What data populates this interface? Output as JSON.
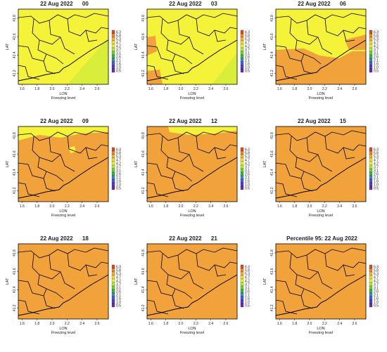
{
  "colors": {
    "yellow": "#f5f23a",
    "lime": "#d8ee3a",
    "orange": "#f1a23a",
    "boundary": "#000000"
  },
  "chart_data": [
    {
      "type": "heatmap",
      "title": "22 Aug 2022      00",
      "xlabel": "LON",
      "ylabel": "LAT",
      "caption": "Freezing level",
      "x_ticks": [
        "1.6",
        "1.8",
        "2.0",
        "2.2",
        "2.4",
        "2.6"
      ],
      "y_ticks": [
        "41.2",
        "41.4",
        "41.6",
        "41.8"
      ],
      "colorbar_ticks": [
        "6.3",
        "5.8",
        "5.3",
        "4.7",
        "4.2",
        "3.7",
        "3.1",
        "2.6",
        "2.1",
        "1.6",
        "1.0",
        "0.5"
      ],
      "dominant": "yellow"
    },
    {
      "type": "heatmap",
      "title": "22 Aug 2022      03",
      "xlabel": "LON",
      "ylabel": "LAT",
      "caption": "Freezing level",
      "x_ticks": [
        "1.6",
        "1.8",
        "2.0",
        "2.2",
        "2.4",
        "2.6"
      ],
      "y_ticks": [
        "41.2",
        "41.4",
        "41.6",
        "41.8"
      ],
      "colorbar_ticks": [
        "6.3",
        "5.8",
        "5.3",
        "4.7",
        "4.2",
        "3.7",
        "3.1",
        "2.6",
        "2.1",
        "1.6",
        "1.0",
        "0.5"
      ],
      "dominant": "yellow"
    },
    {
      "type": "heatmap",
      "title": "22 Aug 2022      06",
      "xlabel": "LON",
      "ylabel": "LAT",
      "caption": "Freezing level",
      "x_ticks": [
        "1.6",
        "1.8",
        "2.0",
        "2.2",
        "2.4",
        "2.6"
      ],
      "y_ticks": [
        "41.2",
        "41.4",
        "41.6",
        "41.8"
      ],
      "colorbar_ticks": [
        "6.3",
        "5.8",
        "5.3",
        "4.7",
        "4.2",
        "3.7",
        "3.1",
        "2.6",
        "2.1",
        "1.6",
        "1.0",
        "0.5"
      ],
      "dominant": "mixed"
    },
    {
      "type": "heatmap",
      "title": "22 Aug 2022      09",
      "xlabel": "LON",
      "ylabel": "LAT",
      "caption": "Freezing level",
      "x_ticks": [
        "1.6",
        "1.8",
        "2.0",
        "2.2",
        "2.4",
        "2.6"
      ],
      "y_ticks": [
        "41.2",
        "41.4",
        "41.6",
        "41.8"
      ],
      "colorbar_ticks": [
        "6.3",
        "5.8",
        "5.3",
        "4.7",
        "4.2",
        "3.7",
        "3.1",
        "2.6",
        "2.1",
        "1.6",
        "1.0",
        "0.5"
      ],
      "dominant": "orange"
    },
    {
      "type": "heatmap",
      "title": "22 Aug 2022      12",
      "xlabel": "LON",
      "ylabel": "LAT",
      "caption": "Freezing level",
      "x_ticks": [
        "1.6",
        "1.8",
        "2.0",
        "2.2",
        "2.4",
        "2.6"
      ],
      "y_ticks": [
        "41.2",
        "41.4",
        "41.6",
        "41.8"
      ],
      "colorbar_ticks": [
        "6.3",
        "5.8",
        "5.3",
        "4.7",
        "4.2",
        "3.7",
        "3.1",
        "2.6",
        "2.1",
        "1.6",
        "1.0",
        "0.5"
      ],
      "dominant": "orange"
    },
    {
      "type": "heatmap",
      "title": "22 Aug 2022      15",
      "xlabel": "LON",
      "ylabel": "LAT",
      "caption": "Freezing level",
      "x_ticks": [
        "1.6",
        "1.8",
        "2.0",
        "2.2",
        "2.4",
        "2.6"
      ],
      "y_ticks": [
        "41.2",
        "41.4",
        "41.6",
        "41.8"
      ],
      "colorbar_ticks": [
        "6.3",
        "5.8",
        "5.3",
        "4.7",
        "4.2",
        "3.7",
        "3.1",
        "2.6",
        "2.1",
        "1.6",
        "1.0",
        "0.5"
      ],
      "dominant": "orange"
    },
    {
      "type": "heatmap",
      "title": "22 Aug 2022      18",
      "xlabel": "LON",
      "ylabel": "LAT",
      "caption": "Freezing level",
      "x_ticks": [
        "1.6",
        "1.8",
        "2.0",
        "2.2",
        "2.4",
        "2.6"
      ],
      "y_ticks": [
        "41.2",
        "41.4",
        "41.6",
        "41.8"
      ],
      "colorbar_ticks": [
        "6.3",
        "5.8",
        "5.3",
        "4.7",
        "4.2",
        "3.7",
        "3.1",
        "2.6",
        "2.1",
        "1.6",
        "1.0",
        "0.5"
      ],
      "dominant": "orange"
    },
    {
      "type": "heatmap",
      "title": "22 Aug 2022      21",
      "xlabel": "LON",
      "ylabel": "LAT",
      "caption": "Freezing level",
      "x_ticks": [
        "1.6",
        "1.8",
        "2.0",
        "2.2",
        "2.4",
        "2.6"
      ],
      "y_ticks": [
        "41.2",
        "41.4",
        "41.6",
        "41.8"
      ],
      "colorbar_ticks": [
        "6.3",
        "5.8",
        "5.3",
        "4.7",
        "4.2",
        "3.7",
        "3.1",
        "2.6",
        "2.1",
        "1.6",
        "1.0",
        "0.5"
      ],
      "dominant": "orange"
    },
    {
      "type": "heatmap",
      "title": "Percentile 95: 22 Aug 2022",
      "xlabel": "LON",
      "ylabel": "LAT",
      "caption": "Freezing level",
      "x_ticks": [
        "1.6",
        "1.8",
        "2.0",
        "2.2",
        "2.4",
        "2.6"
      ],
      "y_ticks": [
        "41.2",
        "41.4",
        "41.6",
        "41.8"
      ],
      "colorbar_ticks": [
        "6.3",
        "5.8",
        "5.3",
        "4.7",
        "4.2",
        "3.7",
        "3.1",
        "2.6",
        "2.1",
        "1.6",
        "1.0",
        "0.5"
      ],
      "dominant": "orange"
    }
  ]
}
